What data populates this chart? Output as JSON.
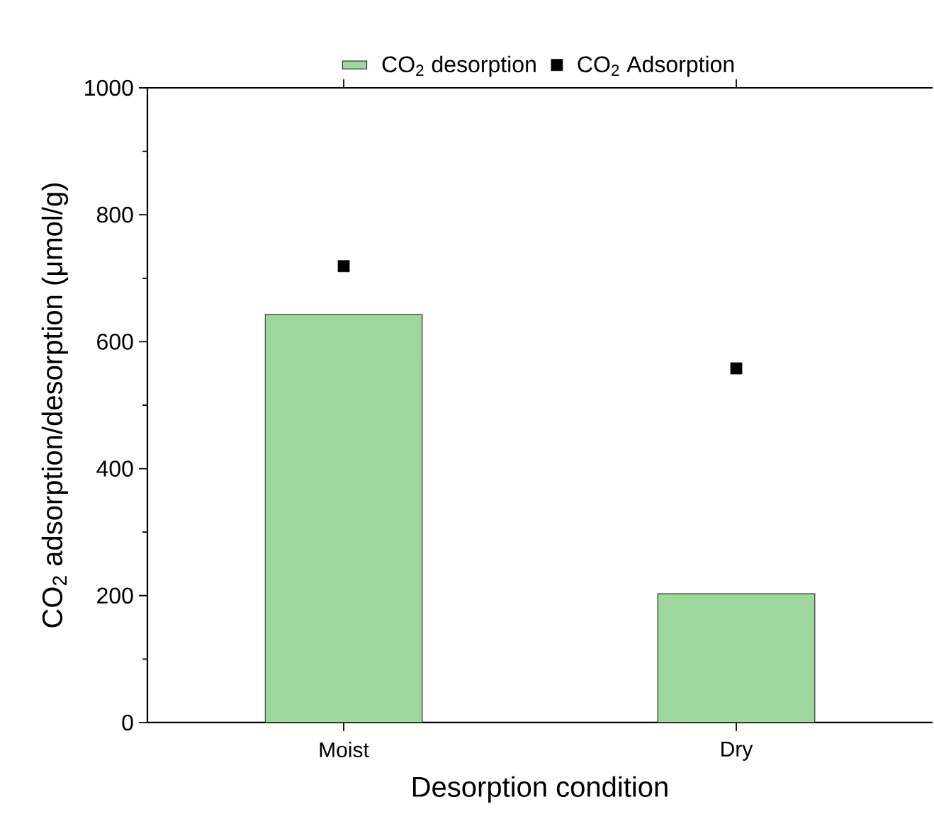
{
  "chart_data": {
    "type": "bar",
    "xlabel": "Desorption condition",
    "ylabel": "CO$_{2}$ adsorption/desorption (μmol/g)",
    "categories": [
      "Moist",
      "Dry"
    ],
    "series": [
      {
        "name": "CO$_{2}$ desorption",
        "color": "#9fd89c",
        "values": [
          643,
          203
        ]
      },
      {
        "name": "CO$_{2}$ Adsorption",
        "type": "scatter",
        "color": "#000000",
        "marker": "square",
        "values": [
          719,
          558
        ]
      }
    ],
    "ylim": [
      0,
      1000
    ],
    "yticks": [
      0,
      200,
      400,
      600,
      800,
      1000
    ],
    "legend": "top",
    "grid": false
  }
}
